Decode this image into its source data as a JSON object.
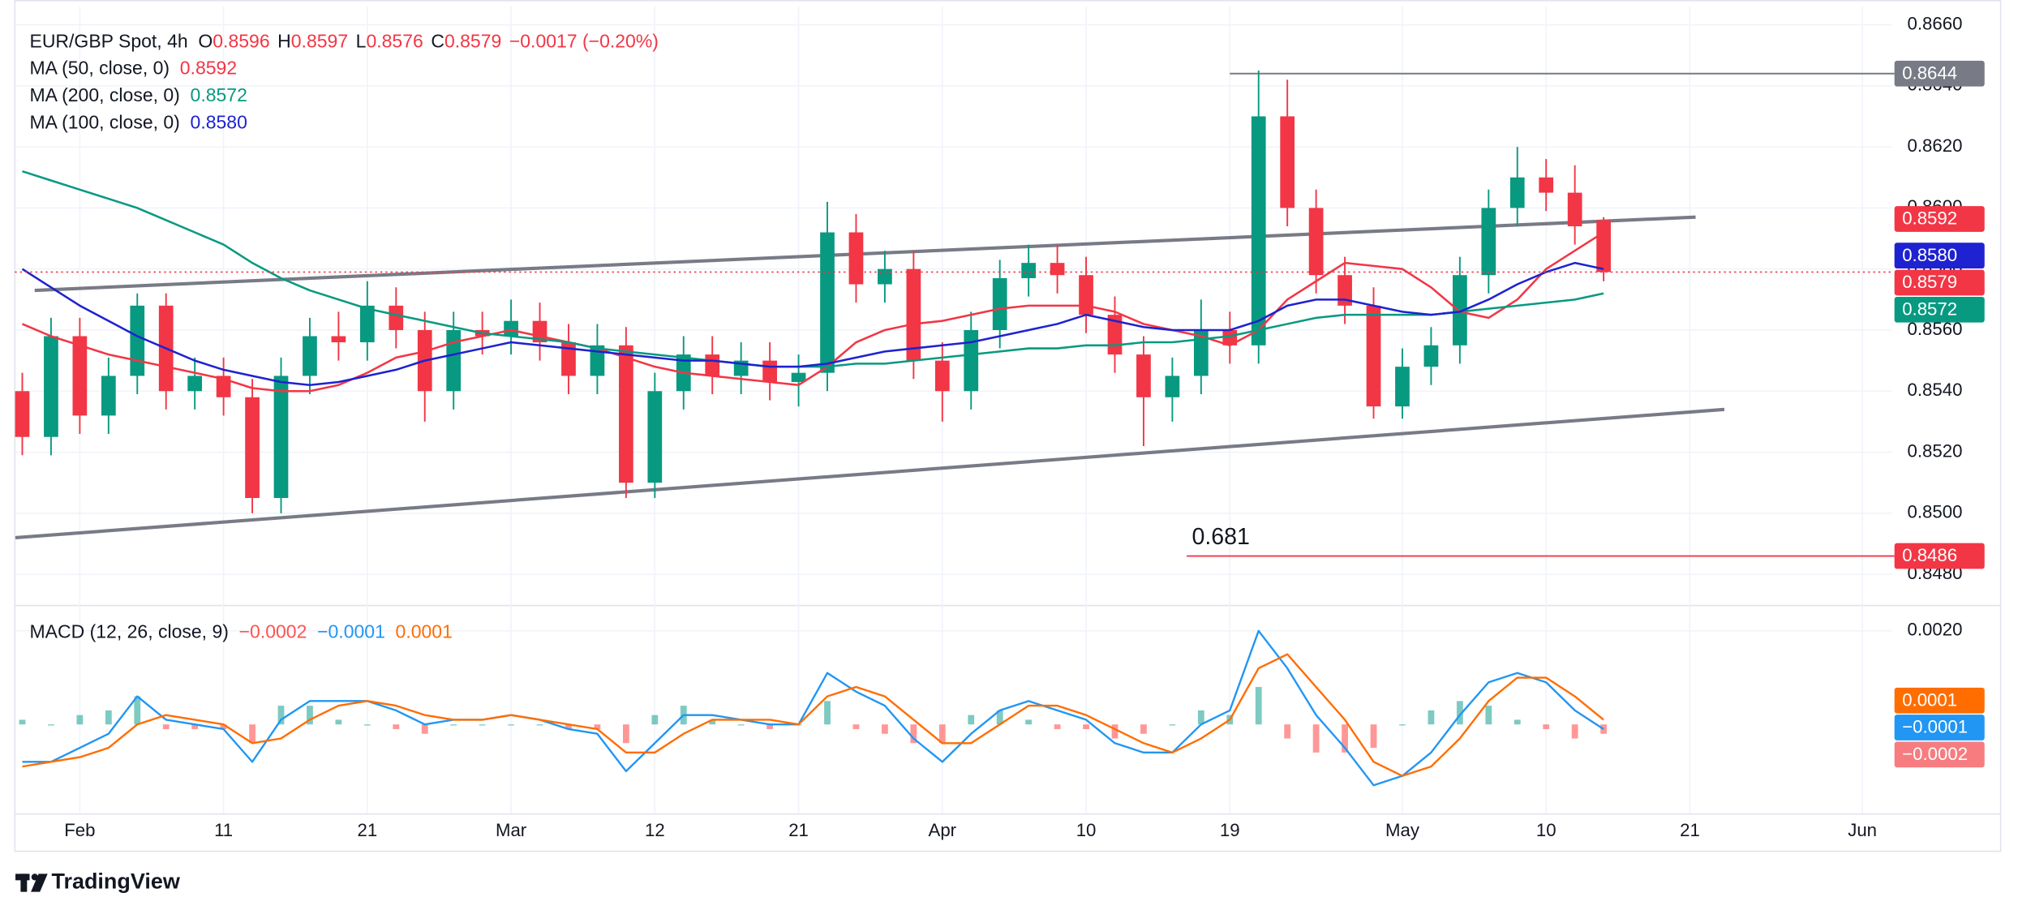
{
  "brand": "TradingView",
  "chart_data": [
    {
      "type": "candlestick",
      "title": "EUR/GBP Spot, 4h",
      "ohlc_keys": [
        "O",
        "H",
        "L",
        "C"
      ],
      "ohlc_labels": [
        "0.8596",
        "0.8597",
        "0.8576",
        "0.8579"
      ],
      "change": "−0.0017 (−0.20%)",
      "categories": [
        null,
        null,
        "Feb",
        null,
        null,
        null,
        null,
        "11",
        null,
        null,
        null,
        null,
        "21",
        null,
        null,
        null,
        null,
        "Mar",
        null,
        null,
        null,
        null,
        "12",
        null,
        null,
        null,
        null,
        "21",
        null,
        null,
        null,
        null,
        "Apr",
        null,
        null,
        null,
        null,
        "10",
        null,
        null,
        null,
        null,
        "19",
        null,
        null,
        null,
        null,
        null,
        "May",
        null,
        null,
        null,
        null,
        "10",
        null,
        null,
        null,
        null,
        "21",
        null,
        null,
        null,
        null,
        null,
        "Jun"
      ],
      "open": [
        0.854,
        0.8525,
        0.8558,
        0.8532,
        0.8545,
        0.8568,
        0.854,
        0.8545,
        0.8538,
        0.8505,
        0.8545,
        0.8558,
        0.8556,
        0.8568,
        0.856,
        0.854,
        0.856,
        0.8558,
        0.8563,
        0.8556,
        0.8545,
        0.8555,
        0.851,
        0.854,
        0.8552,
        0.8545,
        0.855,
        0.8543,
        0.8546,
        0.8592,
        0.8575,
        0.858,
        0.855,
        0.854,
        0.856,
        0.8577,
        0.8582,
        0.8578,
        0.8565,
        0.8552,
        0.8538,
        0.8545,
        0.856,
        0.8555,
        0.863,
        0.86,
        0.8578,
        0.8568,
        0.8535,
        0.8548,
        0.8555,
        0.8578,
        0.86,
        0.861,
        0.8605,
        0.8596,
        null,
        null,
        null,
        null,
        null,
        null,
        null,
        null,
        null
      ],
      "high": [
        0.8546,
        0.8564,
        0.8564,
        0.8551,
        0.8572,
        0.8572,
        0.8551,
        0.8551,
        0.8544,
        0.8551,
        0.8564,
        0.8566,
        0.8576,
        0.8574,
        0.8566,
        0.8566,
        0.8566,
        0.857,
        0.8569,
        0.8562,
        0.8562,
        0.8561,
        0.8546,
        0.8558,
        0.8558,
        0.8556,
        0.8556,
        0.8552,
        0.8602,
        0.8598,
        0.8586,
        0.8586,
        0.8556,
        0.8566,
        0.8583,
        0.8588,
        0.8588,
        0.8584,
        0.8571,
        0.8558,
        0.8551,
        0.857,
        0.8566,
        0.8645,
        0.8642,
        0.8606,
        0.8584,
        0.8574,
        0.8554,
        0.8561,
        0.8584,
        0.8606,
        0.862,
        0.8616,
        0.8614,
        0.8597,
        null,
        null,
        null,
        null,
        null,
        null,
        null,
        null,
        null
      ],
      "low": [
        0.8519,
        0.8519,
        0.8526,
        0.8526,
        0.8539,
        0.8534,
        0.8534,
        0.8532,
        0.85,
        0.85,
        0.8539,
        0.855,
        0.855,
        0.8554,
        0.853,
        0.8534,
        0.8552,
        0.8552,
        0.855,
        0.8539,
        0.8539,
        0.8505,
        0.8505,
        0.8534,
        0.8539,
        0.8539,
        0.8537,
        0.8535,
        0.854,
        0.8569,
        0.8569,
        0.8544,
        0.853,
        0.8534,
        0.8554,
        0.8571,
        0.8572,
        0.8559,
        0.8546,
        0.8522,
        0.853,
        0.8539,
        0.8549,
        0.8549,
        0.8594,
        0.8572,
        0.8562,
        0.8531,
        0.8531,
        0.8542,
        0.8549,
        0.8572,
        0.8594,
        0.8599,
        0.8588,
        0.8576,
        null,
        null,
        null,
        null,
        null,
        null,
        null,
        null,
        null
      ],
      "close": [
        0.8525,
        0.8558,
        0.8532,
        0.8545,
        0.8568,
        0.854,
        0.8545,
        0.8538,
        0.8505,
        0.8545,
        0.8558,
        0.8556,
        0.8568,
        0.856,
        0.854,
        0.856,
        0.8558,
        0.8563,
        0.8556,
        0.8545,
        0.8555,
        0.851,
        0.854,
        0.8552,
        0.8545,
        0.855,
        0.8543,
        0.8546,
        0.8592,
        0.8575,
        0.858,
        0.855,
        0.854,
        0.856,
        0.8577,
        0.8582,
        0.8578,
        0.8565,
        0.8552,
        0.8538,
        0.8545,
        0.856,
        0.8555,
        0.863,
        0.86,
        0.8578,
        0.8568,
        0.8535,
        0.8548,
        0.8555,
        0.8578,
        0.86,
        0.861,
        0.8605,
        0.8594,
        0.8579,
        null,
        null,
        null,
        null,
        null,
        null,
        null,
        null,
        null
      ],
      "up_color": "#089981",
      "down_color": "#f23645",
      "series": [
        {
          "name": "MA (50, close, 0)",
          "color": "#f23645",
          "last_label": "0.8592",
          "values": [
            0.8562,
            0.8558,
            0.8555,
            0.8552,
            0.855,
            0.8548,
            0.8546,
            0.8544,
            0.8541,
            0.854,
            0.854,
            0.8542,
            0.8546,
            0.8551,
            0.8553,
            0.8556,
            0.8558,
            0.856,
            0.8558,
            0.8556,
            0.8554,
            0.8551,
            0.8548,
            0.8546,
            0.8545,
            0.8544,
            0.8543,
            0.8542,
            0.8548,
            0.8556,
            0.856,
            0.8562,
            0.8563,
            0.8565,
            0.8567,
            0.8568,
            0.8568,
            0.8568,
            0.8566,
            0.8562,
            0.856,
            0.8558,
            0.8555,
            0.856,
            0.857,
            0.8576,
            0.8582,
            0.8581,
            0.858,
            0.8574,
            0.8566,
            0.8564,
            0.857,
            0.858,
            0.8586,
            0.8592,
            null,
            null,
            null,
            null,
            null,
            null,
            null,
            null,
            null
          ]
        },
        {
          "name": "MA (200, close, 0)",
          "color": "#089981",
          "last_label": "0.8572",
          "values": [
            0.8612,
            0.8609,
            0.8606,
            0.8603,
            0.86,
            0.8596,
            0.8592,
            0.8588,
            0.8582,
            0.8577,
            0.8573,
            0.857,
            0.8567,
            0.8565,
            0.8563,
            0.8561,
            0.8559,
            0.8558,
            0.8557,
            0.8556,
            0.8554,
            0.8553,
            0.8552,
            0.8551,
            0.855,
            0.8549,
            0.8548,
            0.8548,
            0.8548,
            0.8549,
            0.8549,
            0.855,
            0.8551,
            0.8552,
            0.8553,
            0.8554,
            0.8554,
            0.8555,
            0.8555,
            0.8556,
            0.8556,
            0.8557,
            0.8558,
            0.856,
            0.8562,
            0.8564,
            0.8565,
            0.8565,
            0.8565,
            0.8565,
            0.8566,
            0.8567,
            0.8568,
            0.8569,
            0.857,
            0.8572,
            null,
            null,
            null,
            null,
            null,
            null,
            null,
            null,
            null
          ]
        },
        {
          "name": "MA (100, close, 0)",
          "color": "#1e22d0",
          "last_label": "0.8580",
          "values": [
            0.858,
            0.8574,
            0.8568,
            0.8563,
            0.8558,
            0.8554,
            0.855,
            0.8547,
            0.8545,
            0.8543,
            0.8542,
            0.8543,
            0.8545,
            0.8547,
            0.855,
            0.8552,
            0.8554,
            0.8556,
            0.8555,
            0.8554,
            0.8553,
            0.8552,
            0.8551,
            0.855,
            0.855,
            0.8549,
            0.8548,
            0.8548,
            0.8549,
            0.8551,
            0.8553,
            0.8554,
            0.8555,
            0.8556,
            0.8558,
            0.856,
            0.8562,
            0.8565,
            0.8563,
            0.8561,
            0.856,
            0.856,
            0.856,
            0.8563,
            0.8568,
            0.857,
            0.857,
            0.8568,
            0.8566,
            0.8565,
            0.8566,
            0.857,
            0.8575,
            0.8579,
            0.8582,
            0.858,
            null,
            null,
            null,
            null,
            null,
            null,
            null,
            null,
            null
          ]
        }
      ],
      "ylim": [
        0.847,
        0.8666
      ],
      "yticks": [
        {
          "value": 0.866,
          "label": "0.8660"
        },
        {
          "value": 0.864,
          "label": "0.8640"
        },
        {
          "value": 0.862,
          "label": "0.8620"
        },
        {
          "value": 0.86,
          "label": "0.8600"
        },
        {
          "value": 0.858,
          "label": "0.8580"
        },
        {
          "value": 0.856,
          "label": "0.8560"
        },
        {
          "value": 0.854,
          "label": "0.8540"
        },
        {
          "value": 0.852,
          "label": "0.8520"
        },
        {
          "value": 0.85,
          "label": "0.8500"
        },
        {
          "value": 0.848,
          "label": "0.8480"
        }
      ],
      "grid": true,
      "trendlines": [
        {
          "start": 0.8573,
          "end": 0.8597,
          "color": "#787b86"
        },
        {
          "start": 0.8492,
          "end": 0.8534,
          "color": "#787b86"
        }
      ],
      "levels": [
        {
          "value": 0.8644,
          "label": "0.8644",
          "color": "#787b86"
        },
        {
          "value": 0.8486,
          "label": "0.8486",
          "color": "#f23645",
          "note": "0.681"
        }
      ]
    },
    {
      "type": "macd",
      "title": "MACD (12, 26, close, 9)",
      "histogram": {
        "up_color": "#26a69a",
        "down_color": "#ff5252",
        "last_label": "−0.0002",
        "values": [
          0.0001,
          0,
          0.0002,
          0.0003,
          0.0006,
          -0.0001,
          -0.0001,
          -0.0001,
          -0.0004,
          0.0004,
          0.0004,
          0.0001,
          0,
          -0.0001,
          -0.0002,
          0,
          0,
          0,
          0,
          -0.0001,
          -0.0001,
          -0.0004,
          0.0002,
          0.0004,
          0.0001,
          0,
          -0.0001,
          0,
          0.0005,
          -0.0001,
          -0.0002,
          -0.0004,
          -0.0004,
          0.0002,
          0.0003,
          0.0001,
          -0.0001,
          -0.0001,
          -0.0003,
          -0.0002,
          0,
          0.0003,
          0.0002,
          0.0008,
          -0.0003,
          -0.0006,
          -0.0006,
          -0.0005,
          0,
          0.0003,
          0.0005,
          0.0004,
          0.0001,
          -0.0001,
          -0.0003,
          -0.0002,
          null,
          null,
          null,
          null,
          null,
          null,
          null,
          null,
          null
        ]
      },
      "macd": {
        "color": "#2196f3",
        "last_label": "−0.0001",
        "values": [
          -0.0008,
          -0.0008,
          -0.0005,
          -0.0002,
          0.0006,
          0.0001,
          0,
          -0.0001,
          -0.0008,
          0.0001,
          0.0005,
          0.0005,
          0.0005,
          0.0003,
          0,
          0.0001,
          0.0001,
          0.0002,
          0.0001,
          -0.0001,
          -0.0002,
          -0.001,
          -0.0004,
          0.0002,
          0.0002,
          0.0001,
          0,
          0,
          0.0011,
          0.0007,
          0.0004,
          -0.0003,
          -0.0008,
          -0.0002,
          0.0003,
          0.0005,
          0.0003,
          0.0001,
          -0.0004,
          -0.0006,
          -0.0006,
          0,
          0.0003,
          0.002,
          0.0012,
          0.0002,
          -0.0005,
          -0.0013,
          -0.0011,
          -0.0006,
          0.0002,
          0.0009,
          0.0011,
          0.0009,
          0.0003,
          -0.0001,
          null,
          null,
          null,
          null,
          null,
          null,
          null,
          null,
          null
        ]
      },
      "signal": {
        "color": "#ff6d00",
        "last_label": "0.0001",
        "values": [
          -0.0009,
          -0.0008,
          -0.0007,
          -0.0005,
          0,
          0.0002,
          0.0001,
          0,
          -0.0004,
          -0.0003,
          0.0001,
          0.0004,
          0.0005,
          0.0004,
          0.0002,
          0.0001,
          0.0001,
          0.0002,
          0.0001,
          0,
          -0.0001,
          -0.0006,
          -0.0006,
          -0.0002,
          0.0001,
          0.0001,
          0.0001,
          0,
          0.0006,
          0.0008,
          0.0006,
          0.0001,
          -0.0004,
          -0.0004,
          0,
          0.0004,
          0.0004,
          0.0002,
          -0.0001,
          -0.0004,
          -0.0006,
          -0.0003,
          0.0001,
          0.0012,
          0.0015,
          0.0008,
          0.0001,
          -0.0008,
          -0.0011,
          -0.0009,
          -0.0003,
          0.0005,
          0.001,
          0.001,
          0.0006,
          0.0001,
          null,
          null,
          null,
          null,
          null,
          null,
          null,
          null,
          null
        ]
      },
      "ylim": [
        -0.0019,
        0.0025
      ],
      "yticks": [
        {
          "value": 0.002,
          "label": "0.0020"
        }
      ],
      "grid": true
    }
  ]
}
